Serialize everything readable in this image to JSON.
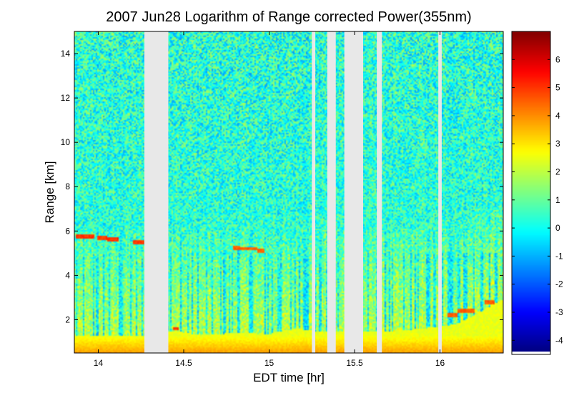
{
  "chart_data": {
    "type": "heatmap",
    "title": "2007 Jun28  Logarithm of Range corrected Power(355nm)",
    "xlabel": "EDT time [hr]",
    "ylabel": "Range [km]",
    "xlim": [
      13.86,
      16.37
    ],
    "ylim": [
      0.5,
      15
    ],
    "xticks": [
      14,
      14.5,
      15,
      15.5,
      16
    ],
    "xtick_labels": [
      "14",
      "14.5",
      "15",
      "15.5",
      "16"
    ],
    "yticks": [
      2,
      4,
      6,
      8,
      10,
      12,
      14
    ],
    "ytick_labels": [
      "2",
      "4",
      "6",
      "8",
      "10",
      "12",
      "14"
    ],
    "colorbar": {
      "colormap": "jet",
      "range": [
        -4.4,
        7
      ],
      "ticks": [
        -4,
        -3,
        -2,
        -1,
        0,
        1,
        2,
        3,
        4,
        5,
        6
      ],
      "tick_labels": [
        "-4",
        "-3",
        "-2",
        "-1",
        "0",
        "1",
        "2",
        "3",
        "4",
        "5",
        "6"
      ]
    },
    "data_gaps_hr": [
      [
        14.27,
        14.41
      ],
      [
        15.25,
        15.27
      ],
      [
        15.34,
        15.39
      ],
      [
        15.44,
        15.55
      ],
      [
        15.63,
        15.66
      ],
      [
        15.99,
        16.01
      ]
    ],
    "surface_layer": {
      "top_km": 1.3,
      "value_near_ground": 3.8,
      "value_top": 2.5
    },
    "aerosol_layer_top_km": [
      {
        "t": 13.87,
        "z": 1.2
      },
      {
        "t": 14.0,
        "z": 1.15
      },
      {
        "t": 14.1,
        "z": 1.25
      },
      {
        "t": 14.2,
        "z": 1.2
      },
      {
        "t": 14.45,
        "z": 1.5
      },
      {
        "t": 14.6,
        "z": 1.3
      },
      {
        "t": 14.8,
        "z": 1.4
      },
      {
        "t": 15.0,
        "z": 1.35
      },
      {
        "t": 15.15,
        "z": 1.6
      },
      {
        "t": 15.3,
        "z": 1.45
      },
      {
        "t": 15.6,
        "z": 1.45
      },
      {
        "t": 15.75,
        "z": 1.5
      },
      {
        "t": 15.9,
        "z": 1.6
      },
      {
        "t": 16.1,
        "z": 1.8
      },
      {
        "t": 16.25,
        "z": 2.4
      },
      {
        "t": 16.36,
        "z": 2.9
      }
    ],
    "cloud_layers": [
      {
        "t_start": 13.87,
        "t_end": 13.98,
        "z_km": 5.75,
        "value": 5.0
      },
      {
        "t_start": 13.99,
        "t_end": 14.05,
        "z_km": 5.7,
        "value": 5.0
      },
      {
        "t_start": 14.05,
        "t_end": 14.12,
        "z_km": 5.6,
        "value": 5.0
      },
      {
        "t_start": 14.2,
        "t_end": 14.27,
        "z_km": 5.5,
        "value": 5.0
      },
      {
        "t_start": 14.79,
        "t_end": 14.83,
        "z_km": 5.25,
        "value": 4.5
      },
      {
        "t_start": 14.83,
        "t_end": 14.93,
        "z_km": 5.2,
        "value": 4.5
      },
      {
        "t_start": 14.93,
        "t_end": 14.97,
        "z_km": 5.1,
        "value": 4.5
      },
      {
        "t_start": 14.44,
        "t_end": 14.47,
        "z_km": 1.6,
        "value": 5.0
      },
      {
        "t_start": 16.04,
        "t_end": 16.1,
        "z_km": 2.2,
        "value": 4.5
      },
      {
        "t_start": 16.1,
        "t_end": 16.2,
        "z_km": 2.4,
        "value": 4.5
      },
      {
        "t_start": 16.26,
        "t_end": 16.32,
        "z_km": 2.8,
        "value": 4.5
      }
    ],
    "free_troposphere_mean_value": 0.3,
    "free_troposphere_noise_amplitude": 1.6,
    "grid": false
  }
}
